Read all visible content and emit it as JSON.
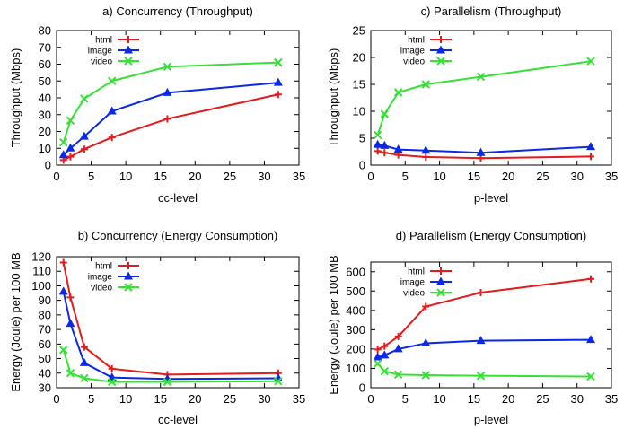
{
  "chart_data": [
    {
      "type": "line",
      "title": "a) Concurrency (Throughput)",
      "xlabel": "cc-level",
      "ylabel": "Throughput (Mbps)",
      "xlim": [
        0,
        35
      ],
      "ylim": [
        0,
        80
      ],
      "xticks": [
        0,
        5,
        10,
        15,
        20,
        25,
        30,
        35
      ],
      "yticks": [
        0,
        10,
        20,
        30,
        40,
        50,
        60,
        70,
        80
      ],
      "legend": "top-right",
      "series": [
        {
          "name": "html",
          "color": "#e41a1c",
          "marker": "plus",
          "x": [
            1,
            2,
            4,
            8,
            16,
            32
          ],
          "y": [
            3,
            5,
            9.5,
            16.5,
            27.5,
            42
          ]
        },
        {
          "name": "image",
          "color": "#0a28e6",
          "marker": "triangle",
          "x": [
            1,
            2,
            4,
            8,
            16,
            32
          ],
          "y": [
            6,
            10,
            17,
            32,
            43,
            49
          ]
        },
        {
          "name": "video",
          "color": "#33e233",
          "marker": "cross",
          "x": [
            1,
            2,
            4,
            8,
            16,
            32
          ],
          "y": [
            13.5,
            26.5,
            39.5,
            50,
            58.5,
            61
          ]
        }
      ]
    },
    {
      "type": "line",
      "title": "c) Parallelism (Throughput)",
      "xlabel": "p-level",
      "ylabel": "Throughput (Mbps)",
      "xlim": [
        0,
        35
      ],
      "ylim": [
        0,
        25
      ],
      "xticks": [
        0,
        5,
        10,
        15,
        20,
        25,
        30,
        35
      ],
      "yticks": [
        0,
        5,
        10,
        15,
        20,
        25
      ],
      "legend": "top-right",
      "series": [
        {
          "name": "html",
          "color": "#e41a1c",
          "marker": "plus",
          "x": [
            1,
            2,
            4,
            8,
            16,
            32
          ],
          "y": [
            2.6,
            2.3,
            1.9,
            1.5,
            1.3,
            1.6
          ]
        },
        {
          "name": "image",
          "color": "#0a28e6",
          "marker": "triangle",
          "x": [
            1,
            2,
            4,
            8,
            16,
            32
          ],
          "y": [
            3.8,
            3.6,
            2.9,
            2.7,
            2.3,
            3.4
          ]
        },
        {
          "name": "video",
          "color": "#33e233",
          "marker": "cross",
          "x": [
            1,
            2,
            4,
            8,
            16,
            32
          ],
          "y": [
            5.6,
            9.5,
            13.5,
            15,
            16.4,
            19.3
          ]
        }
      ]
    },
    {
      "type": "line",
      "title": "b) Concurrency (Energy Consumption)",
      "xlabel": "cc-level",
      "ylabel": "Energy (Joule) per 100 MB",
      "xlim": [
        0,
        35
      ],
      "ylim": [
        30,
        120
      ],
      "xticks": [
        0,
        5,
        10,
        15,
        20,
        25,
        30,
        35
      ],
      "yticks": [
        30,
        40,
        50,
        60,
        70,
        80,
        90,
        100,
        110,
        120
      ],
      "legend": "top-right",
      "series": [
        {
          "name": "html",
          "color": "#e41a1c",
          "marker": "plus",
          "x": [
            1,
            2,
            4,
            8,
            16,
            32
          ],
          "y": [
            116,
            92,
            58,
            43,
            39,
            40
          ]
        },
        {
          "name": "image",
          "color": "#0a28e6",
          "marker": "triangle",
          "x": [
            1,
            2,
            4,
            8,
            16,
            32
          ],
          "y": [
            96,
            74,
            47,
            37,
            36,
            36.5
          ]
        },
        {
          "name": "video",
          "color": "#33e233",
          "marker": "cross",
          "x": [
            1,
            2,
            4,
            8,
            16,
            32
          ],
          "y": [
            56,
            40,
            36.5,
            34,
            34,
            34.5
          ]
        }
      ]
    },
    {
      "type": "line",
      "title": "d) Parallelism (Energy Consumption)",
      "xlabel": "p-level",
      "ylabel": "Energy (Joule) per 100 MB",
      "xlim": [
        0,
        35
      ],
      "ylim": [
        0,
        650
      ],
      "xticks": [
        0,
        5,
        10,
        15,
        20,
        25,
        30,
        35
      ],
      "yticks": [
        0,
        100,
        200,
        300,
        400,
        500,
        600
      ],
      "legend": "top-right",
      "series": [
        {
          "name": "html",
          "color": "#e41a1c",
          "marker": "plus",
          "x": [
            1,
            2,
            4,
            8,
            16,
            32
          ],
          "y": [
            198,
            215,
            265,
            420,
            492,
            563
          ]
        },
        {
          "name": "image",
          "color": "#0a28e6",
          "marker": "triangle",
          "x": [
            1,
            2,
            4,
            8,
            16,
            32
          ],
          "y": [
            158,
            168,
            200,
            230,
            243,
            248
          ]
        },
        {
          "name": "video",
          "color": "#33e233",
          "marker": "cross",
          "x": [
            1,
            2,
            4,
            8,
            16,
            32
          ],
          "y": [
            125,
            85,
            68,
            65,
            62,
            58
          ]
        }
      ]
    }
  ]
}
